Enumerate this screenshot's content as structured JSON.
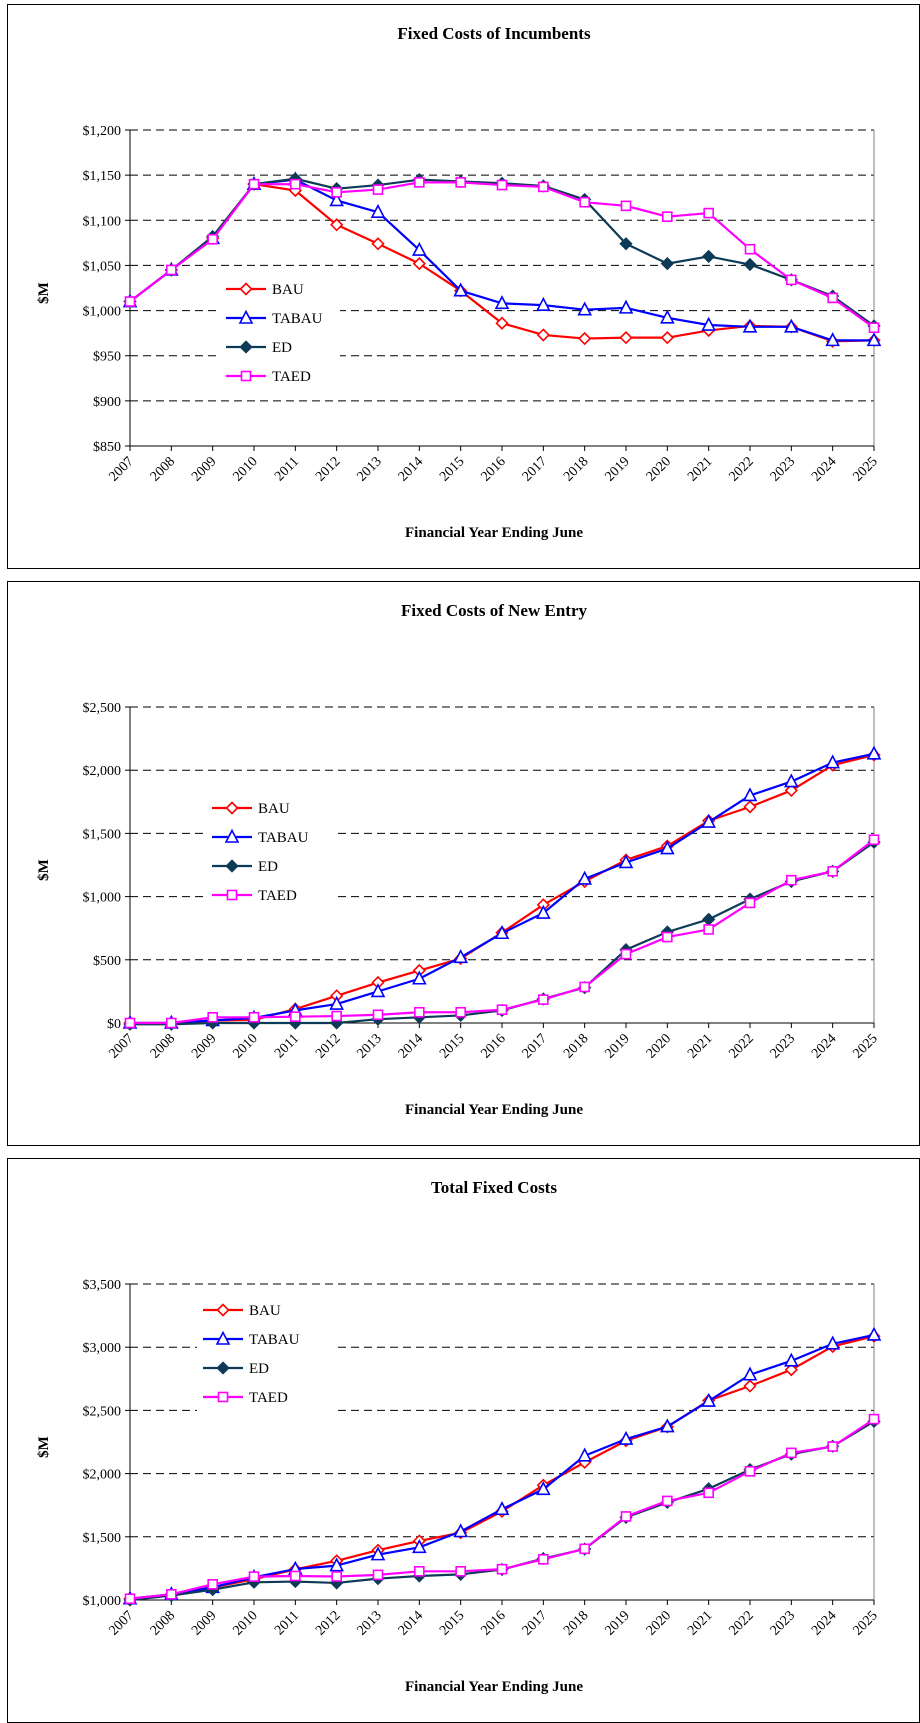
{
  "colors": {
    "BAU": "#ff0000",
    "TABAU": "#0000ff",
    "ED": "#0c3a57",
    "TAED": "#ff00ff"
  },
  "markers": {
    "BAU": "diamond-open",
    "TABAU": "triangle-open",
    "ED": "diamond-filled",
    "TAED": "square-open"
  },
  "chart_data": [
    {
      "type": "line",
      "title": "Fixed Costs of Incumbents",
      "xlabel": "Financial Year Ending June",
      "ylabel": "$M",
      "ylim": [
        850,
        1200
      ],
      "yticks": [
        "$850",
        "$900",
        "$950",
        "$1,000",
        "$1,050",
        "$1,100",
        "$1,150",
        "$1,200"
      ],
      "grid": "dashed horizontal",
      "legend_position": "left-middle",
      "categories": [
        "2007",
        "2008",
        "2009",
        "2010",
        "2011",
        "2012",
        "2013",
        "2014",
        "2015",
        "2016",
        "2017",
        "2018",
        "2019",
        "2020",
        "2021",
        "2022",
        "2023",
        "2024",
        "2025"
      ],
      "series": [
        {
          "name": "BAU",
          "values": [
            1010,
            1045,
            1080,
            1140,
            1133,
            1095,
            1074,
            1052,
            1022,
            986,
            973,
            969,
            970,
            970,
            978,
            983,
            982,
            966,
            967
          ]
        },
        {
          "name": "TABAU",
          "values": [
            1010,
            1045,
            1080,
            1140,
            1145,
            1122,
            1109,
            1067,
            1022,
            1008,
            1006,
            1001,
            1003,
            992,
            984,
            982,
            982,
            967,
            967
          ]
        },
        {
          "name": "ED",
          "values": [
            1010,
            1045,
            1082,
            1140,
            1146,
            1135,
            1139,
            1145,
            1143,
            1141,
            1138,
            1123,
            1074,
            1052,
            1060,
            1051,
            1034,
            1016,
            983
          ]
        },
        {
          "name": "TAED",
          "values": [
            1010,
            1045,
            1079,
            1140,
            1140,
            1131,
            1134,
            1142,
            1142,
            1139,
            1137,
            1120,
            1116,
            1104,
            1108,
            1068,
            1034,
            1014,
            981
          ]
        }
      ]
    },
    {
      "type": "line",
      "title": "Fixed Costs of New Entry",
      "xlabel": "Financial Year Ending June",
      "ylabel": "$M",
      "ylim": [
        0,
        2500
      ],
      "yticks": [
        "$0",
        "$500",
        "$1,000",
        "$1,500",
        "$2,000",
        "$2,500"
      ],
      "grid": "dashed horizontal",
      "legend_position": "left-middle",
      "categories": [
        "2007",
        "2008",
        "2009",
        "2010",
        "2011",
        "2012",
        "2013",
        "2014",
        "2015",
        "2016",
        "2017",
        "2018",
        "2019",
        "2020",
        "2021",
        "2022",
        "2023",
        "2024",
        "2025"
      ],
      "series": [
        {
          "name": "BAU",
          "values": [
            0,
            0,
            20,
            25,
            110,
            215,
            320,
            415,
            510,
            715,
            935,
            1120,
            1290,
            1400,
            1600,
            1710,
            1840,
            2040,
            2120
          ]
        },
        {
          "name": "TABAU",
          "values": [
            0,
            0,
            20,
            40,
            100,
            150,
            250,
            350,
            520,
            710,
            870,
            1140,
            1270,
            1380,
            1590,
            1800,
            1910,
            2060,
            2130
          ]
        },
        {
          "name": "ED",
          "values": [
            -10,
            -10,
            0,
            0,
            0,
            0,
            30,
            45,
            60,
            100,
            190,
            280,
            580,
            720,
            820,
            980,
            1120,
            1200,
            1430
          ]
        },
        {
          "name": "TAED",
          "values": [
            0,
            0,
            45,
            45,
            50,
            55,
            65,
            85,
            85,
            105,
            185,
            285,
            545,
            680,
            740,
            950,
            1130,
            1200,
            1450
          ]
        }
      ]
    },
    {
      "type": "line",
      "title": "Total Fixed Costs",
      "xlabel": "Financial Year Ending June",
      "ylabel": "$M",
      "ylim": [
        1000,
        3500
      ],
      "yticks": [
        "$1,000",
        "$1,500",
        "$2,000",
        "$2,500",
        "$3,000",
        "$3,500"
      ],
      "grid": "dashed horizontal",
      "legend_position": "left-top",
      "categories": [
        "2007",
        "2008",
        "2009",
        "2010",
        "2011",
        "2012",
        "2013",
        "2014",
        "2015",
        "2016",
        "2017",
        "2018",
        "2019",
        "2020",
        "2021",
        "2022",
        "2023",
        "2024",
        "2025"
      ],
      "series": [
        {
          "name": "BAU",
          "values": [
            1010,
            1045,
            1100,
            1165,
            1243,
            1310,
            1394,
            1467,
            1532,
            1701,
            1908,
            2089,
            2260,
            2370,
            2578,
            2693,
            2822,
            3006,
            3087
          ]
        },
        {
          "name": "TABAU",
          "values": [
            1010,
            1045,
            1100,
            1180,
            1245,
            1272,
            1359,
            1417,
            1542,
            1718,
            1876,
            2141,
            2273,
            2372,
            2574,
            2782,
            2892,
            3027,
            3097
          ]
        },
        {
          "name": "ED",
          "values": [
            1000,
            1035,
            1082,
            1140,
            1146,
            1135,
            1169,
            1190,
            1203,
            1241,
            1328,
            1403,
            1654,
            1772,
            1880,
            2031,
            2154,
            2216,
            2413
          ]
        },
        {
          "name": "TAED",
          "values": [
            1010,
            1045,
            1124,
            1185,
            1190,
            1186,
            1199,
            1227,
            1227,
            1244,
            1322,
            1405,
            1661,
            1784,
            1848,
            2018,
            2164,
            2214,
            2431
          ]
        }
      ]
    }
  ]
}
